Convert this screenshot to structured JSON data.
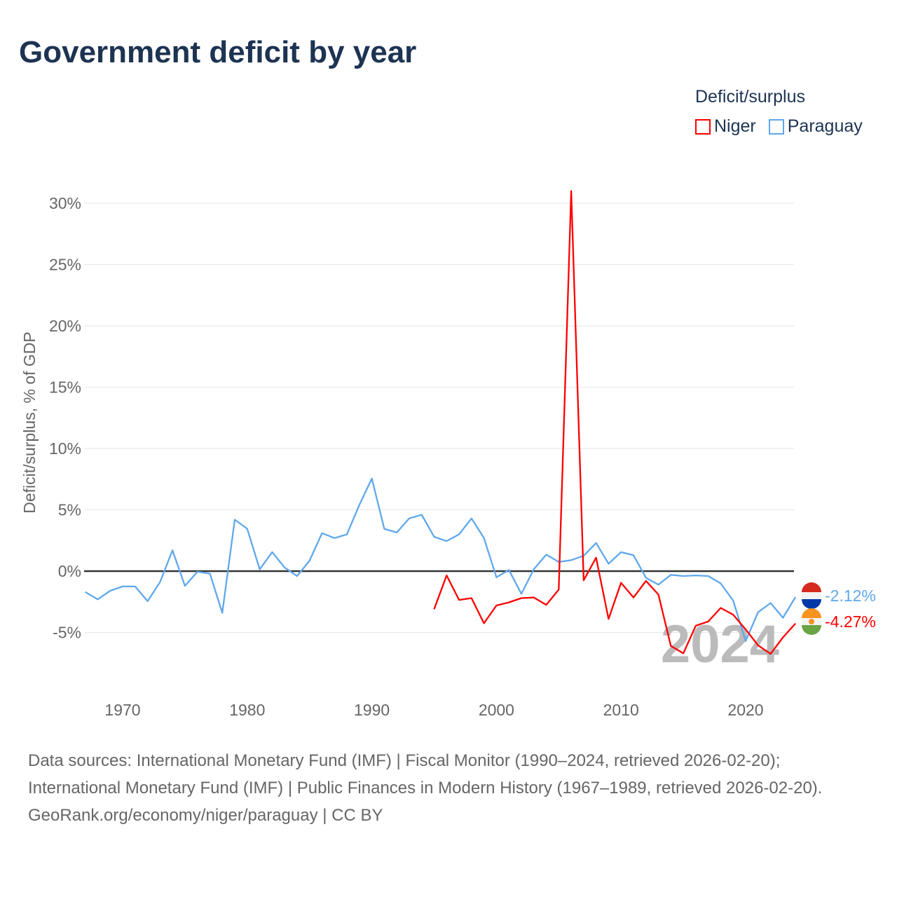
{
  "title": "Government deficit by year",
  "legend": {
    "title": "Deficit/surplus",
    "items": [
      {
        "label": "Niger",
        "color": "#ff0000"
      },
      {
        "label": "Paraguay",
        "color": "#5fa8ec"
      }
    ]
  },
  "chart_data": {
    "type": "line",
    "title": "Government deficit by year",
    "xlabel": "",
    "ylabel": "Deficit/surplus, % of GDP",
    "xlim": [
      1967,
      2024
    ],
    "ylim": [
      -10,
      31
    ],
    "x_ticks": [
      1970,
      1980,
      1990,
      2000,
      2010,
      2020
    ],
    "y_ticks": [
      -5,
      0,
      5,
      10,
      15,
      20,
      25,
      30
    ],
    "y_tick_labels": [
      "-5%",
      "0%",
      "5%",
      "10%",
      "15%",
      "20%",
      "25%",
      "30%"
    ],
    "grid": true,
    "legend_position": "top-right",
    "year_watermark": "2024",
    "series": [
      {
        "name": "Paraguay",
        "color": "#5fa8ec",
        "start_year": 1967,
        "end_label": "-2.12%",
        "values": [
          -1.7,
          -2.3,
          -1.6,
          -1.25,
          -1.25,
          -2.45,
          -0.9,
          1.7,
          -1.2,
          -0.05,
          -0.2,
          -3.4,
          4.2,
          3.45,
          0.15,
          1.55,
          0.3,
          -0.4,
          0.85,
          3.1,
          2.7,
          3.0,
          5.4,
          7.55,
          3.45,
          3.15,
          4.3,
          4.6,
          2.8,
          2.45,
          3.0,
          4.3,
          2.7,
          -0.5,
          0.1,
          -1.85,
          0.15,
          1.35,
          0.75,
          0.9,
          1.25,
          2.3,
          0.6,
          1.55,
          1.3,
          -0.55,
          -1.1,
          -0.3,
          -0.4,
          -0.35,
          -0.4,
          -1.0,
          -2.4,
          -5.7,
          -3.35,
          -2.6,
          -3.8,
          -2.12
        ]
      },
      {
        "name": "Niger",
        "color": "#ff0000",
        "start_year": 1995,
        "end_label": "-4.27%",
        "values": [
          -3.1,
          -0.35,
          -2.35,
          -2.2,
          -4.25,
          -2.8,
          -2.55,
          -2.2,
          -2.15,
          -2.75,
          -1.5,
          31.0,
          -0.75,
          1.1,
          -3.9,
          -0.95,
          -2.15,
          -0.8,
          -1.9,
          -6.1,
          -6.7,
          -4.45,
          -4.1,
          -3.0,
          -3.55,
          -4.75,
          -6.05,
          -6.75,
          -5.4,
          -4.27
        ]
      }
    ]
  },
  "footer": {
    "sources": "Data sources: International Monetary Fund (IMF) | Fiscal Monitor (1990–2024, retrieved 2026-02-20); International Monetary Fund (IMF) | Public Finances in Modern History (1967–1989, retrieved 2026-02-20).",
    "credit": "GeoRank.org/economy/niger/paraguay | CC BY"
  }
}
